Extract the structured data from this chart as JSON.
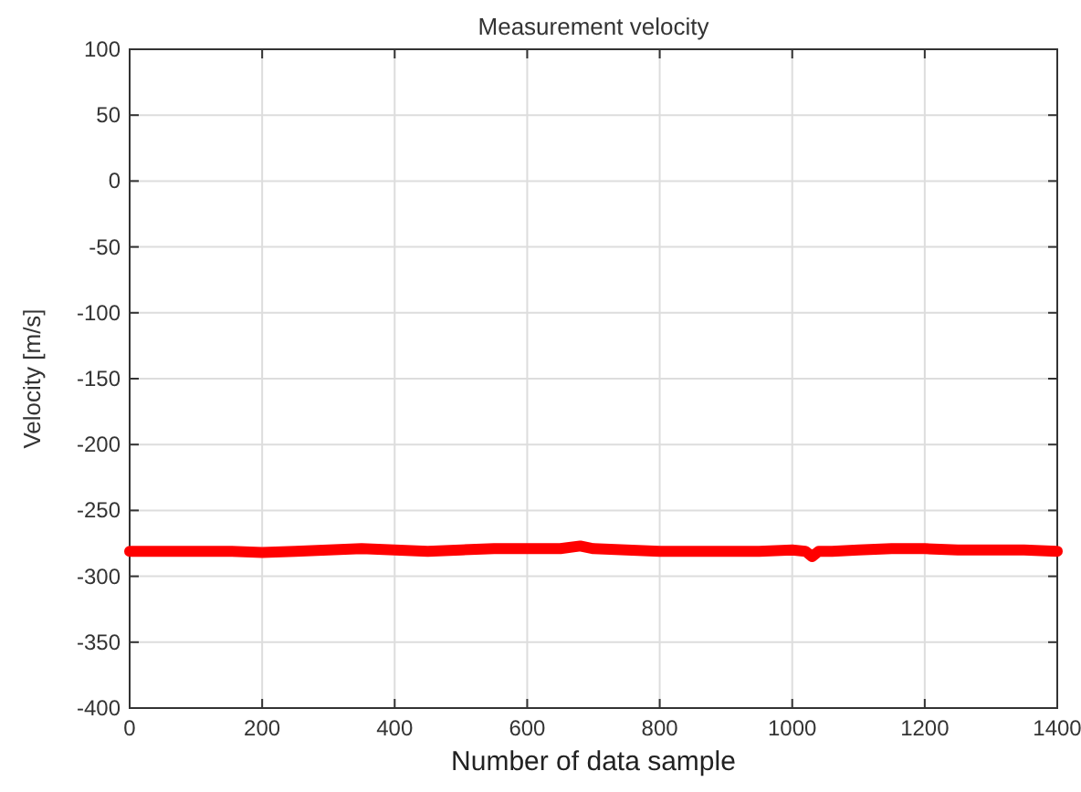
{
  "chart_data": {
    "type": "line",
    "title": "Measurement velocity",
    "xlabel": "Number of data sample",
    "ylabel": "Velocity [m/s]",
    "x": [
      0,
      50,
      100,
      150,
      200,
      250,
      300,
      350,
      400,
      450,
      500,
      550,
      600,
      650,
      680,
      700,
      750,
      800,
      850,
      900,
      950,
      1000,
      1020,
      1030,
      1040,
      1060,
      1100,
      1150,
      1200,
      1250,
      1300,
      1350,
      1400
    ],
    "series": [
      {
        "color": "#ff0000",
        "values": [
          -281,
          -281,
          -281,
          -281,
          -282,
          -281,
          -280,
          -279,
          -280,
          -281,
          -280,
          -279,
          -279,
          -279,
          -277,
          -279,
          -280,
          -281,
          -281,
          -281,
          -281,
          -280,
          -281,
          -285,
          -281,
          -281,
          -280,
          -279,
          -279,
          -280,
          -280,
          -280,
          -281
        ]
      }
    ],
    "xlim": [
      0,
      1400
    ],
    "xticks": [
      0,
      200,
      400,
      600,
      800,
      1000,
      1200,
      1400
    ],
    "ylim": [
      -400,
      100
    ],
    "yticks": [
      -400,
      -350,
      -300,
      -250,
      -200,
      -150,
      -100,
      -50,
      0,
      50,
      100
    ],
    "grid": true,
    "line_style": "solid",
    "marker": "none"
  }
}
